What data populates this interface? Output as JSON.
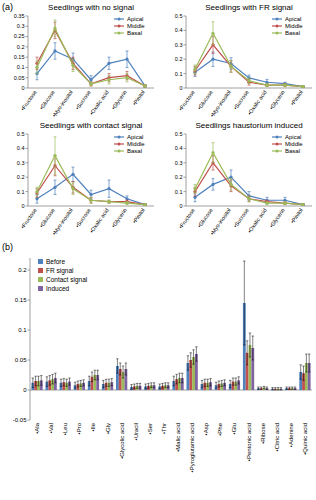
{
  "chart_data": [
    {
      "type": "line",
      "title": "Seedlings with no signal",
      "annotations": [
        "(a)"
      ],
      "categories": [
        "•Fructose",
        "•Glucose",
        "•Myo-inositol",
        "•Sucrose",
        "•Oxalic acid",
        "•Glycerin",
        "•Pinitol"
      ],
      "series": [
        {
          "name": "Apical",
          "color": "#4f81bd",
          "values": [
            0.07,
            0.18,
            0.14,
            0.04,
            0.12,
            0.14,
            0.01
          ],
          "errors": [
            0.03,
            0.04,
            0.03,
            0.02,
            0.03,
            0.04,
            0.005
          ]
        },
        {
          "name": "Middle",
          "color": "#c0504d",
          "values": [
            0.12,
            0.28,
            0.12,
            0.02,
            0.05,
            0.06,
            0.01
          ],
          "errors": [
            0.03,
            0.04,
            0.03,
            0.01,
            0.02,
            0.02,
            0.005
          ]
        },
        {
          "name": "Basal",
          "color": "#9bbb59",
          "values": [
            0.1,
            0.29,
            0.11,
            0.02,
            0.04,
            0.05,
            0.01
          ],
          "errors": [
            0.03,
            0.04,
            0.03,
            0.01,
            0.02,
            0.02,
            0.005
          ]
        }
      ],
      "ylim": [
        0,
        0.35
      ],
      "yticks": [
        0,
        0.05,
        0.1,
        0.15,
        0.2,
        0.25,
        0.3,
        0.35
      ],
      "legend": "top-right",
      "marker": "circle",
      "grid": false
    },
    {
      "type": "line",
      "title": "Seedlings with FR signal",
      "categories": [
        "•Fructose",
        "•Glucose",
        "•Myo-inositol",
        "•Sucrose",
        "•Oxalic acid",
        "•Glycerin",
        "•Pinitol"
      ],
      "series": [
        {
          "name": "Apical",
          "color": "#4f81bd",
          "values": [
            0.11,
            0.2,
            0.17,
            0.07,
            0.04,
            0.03,
            0.01
          ],
          "errors": [
            0.03,
            0.05,
            0.04,
            0.02,
            0.02,
            0.01,
            0.005
          ]
        },
        {
          "name": "Middle",
          "color": "#c0504d",
          "values": [
            0.12,
            0.3,
            0.15,
            0.04,
            0.02,
            0.02,
            0.01
          ],
          "errors": [
            0.03,
            0.06,
            0.04,
            0.02,
            0.01,
            0.01,
            0.005
          ]
        },
        {
          "name": "Basal",
          "color": "#9bbb59",
          "values": [
            0.13,
            0.38,
            0.15,
            0.05,
            0.02,
            0.02,
            0.01
          ],
          "errors": [
            0.03,
            0.08,
            0.04,
            0.02,
            0.01,
            0.01,
            0.005
          ]
        }
      ],
      "ylim": [
        0,
        0.5
      ],
      "yticks": [
        0,
        0.1,
        0.2,
        0.3,
        0.4,
        0.5
      ],
      "legend": "top-right",
      "marker": "circle",
      "grid": false
    },
    {
      "type": "line",
      "title": "Seedlings with contact signal",
      "categories": [
        "•Fructose",
        "•Glucose",
        "•Myo-inositol",
        "•Sucrose",
        "•Oxalic acid",
        "•Glycerin",
        "•Pinitol"
      ],
      "series": [
        {
          "name": "Apical",
          "color": "#4f81bd",
          "values": [
            0.05,
            0.13,
            0.22,
            0.08,
            0.12,
            0.05,
            0.01
          ],
          "errors": [
            0.03,
            0.05,
            0.05,
            0.03,
            0.06,
            0.02,
            0.005
          ]
        },
        {
          "name": "Middle",
          "color": "#c0504d",
          "values": [
            0.09,
            0.28,
            0.13,
            0.04,
            0.03,
            0.03,
            0.01
          ],
          "errors": [
            0.03,
            0.07,
            0.04,
            0.02,
            0.01,
            0.01,
            0.005
          ]
        },
        {
          "name": "Basal",
          "color": "#9bbb59",
          "values": [
            0.1,
            0.35,
            0.12,
            0.04,
            0.03,
            0.02,
            0.01
          ],
          "errors": [
            0.03,
            0.13,
            0.04,
            0.02,
            0.01,
            0.01,
            0.005
          ]
        }
      ],
      "ylim": [
        0,
        0.5
      ],
      "yticks": [
        0,
        0.1,
        0.2,
        0.3,
        0.4,
        0.5
      ],
      "legend": "top-right",
      "marker": "circle",
      "grid": false
    },
    {
      "type": "line",
      "title": "Seedlings haustorium induced",
      "categories": [
        "•Fructose",
        "•Glucose",
        "•Myo-inositol",
        "•Sucrose",
        "•Oxalic acid",
        "•Glycerin",
        "•Pinitol"
      ],
      "series": [
        {
          "name": "Apical",
          "color": "#4f81bd",
          "values": [
            0.06,
            0.15,
            0.2,
            0.07,
            0.04,
            0.04,
            0.01
          ],
          "errors": [
            0.03,
            0.04,
            0.05,
            0.03,
            0.02,
            0.02,
            0.005
          ]
        },
        {
          "name": "Middle",
          "color": "#c0504d",
          "values": [
            0.1,
            0.3,
            0.14,
            0.05,
            0.03,
            0.02,
            0.01
          ],
          "errors": [
            0.03,
            0.05,
            0.04,
            0.02,
            0.01,
            0.01,
            0.005
          ]
        },
        {
          "name": "Basal",
          "color": "#9bbb59",
          "values": [
            0.12,
            0.37,
            0.15,
            0.05,
            0.02,
            0.02,
            0.01
          ],
          "errors": [
            0.03,
            0.07,
            0.04,
            0.02,
            0.01,
            0.01,
            0.005
          ]
        }
      ],
      "ylim": [
        0,
        0.5
      ],
      "yticks": [
        0,
        0.1,
        0.2,
        0.3,
        0.4,
        0.5
      ],
      "legend": "top-right",
      "marker": "circle",
      "grid": false
    },
    {
      "type": "bar",
      "annotations": [
        "(b)"
      ],
      "categories": [
        "•Ala",
        "•Val",
        "•Leu",
        "•Pro",
        "•Ile",
        "•Gly",
        "•Glycolic acid",
        "•Uracil",
        "•Ser",
        "•Thr",
        "•Malic acid",
        "•Pyroglutamic acid",
        "•Asp",
        "•Phe",
        "•Glu",
        "•Pentonic acid",
        "•Ribose",
        "•Citric acid",
        "•Adenine",
        "•Quinic acid"
      ],
      "series": [
        {
          "name": "Before",
          "color": "#4f81bd",
          "values": [
            0.012,
            0.014,
            0.012,
            0.008,
            0.015,
            0.01,
            0.04,
            0.005,
            0.006,
            0.006,
            0.015,
            0.045,
            0.01,
            0.008,
            0.01,
            0.145,
            0.003,
            0.002,
            0.003,
            0.03
          ],
          "errors": [
            0.008,
            0.008,
            0.006,
            0.005,
            0.008,
            0.006,
            0.012,
            0.004,
            0.004,
            0.004,
            0.008,
            0.012,
            0.006,
            0.005,
            0.006,
            0.07,
            0.002,
            0.002,
            0.002,
            0.012
          ]
        },
        {
          "name": "FR signal",
          "color": "#c0504d",
          "values": [
            0.015,
            0.016,
            0.013,
            0.01,
            0.022,
            0.012,
            0.035,
            0.006,
            0.007,
            0.007,
            0.018,
            0.05,
            0.012,
            0.01,
            0.014,
            0.062,
            0.003,
            0.002,
            0.003,
            0.028
          ],
          "errors": [
            0.008,
            0.008,
            0.006,
            0.005,
            0.008,
            0.006,
            0.01,
            0.004,
            0.004,
            0.004,
            0.008,
            0.012,
            0.006,
            0.005,
            0.006,
            0.02,
            0.002,
            0.002,
            0.002,
            0.012
          ]
        },
        {
          "name": "Contact signal",
          "color": "#9bbb59",
          "values": [
            0.015,
            0.018,
            0.012,
            0.011,
            0.025,
            0.012,
            0.03,
            0.007,
            0.008,
            0.008,
            0.02,
            0.055,
            0.012,
            0.011,
            0.014,
            0.075,
            0.004,
            0.002,
            0.003,
            0.045
          ],
          "errors": [
            0.008,
            0.008,
            0.006,
            0.005,
            0.008,
            0.006,
            0.01,
            0.004,
            0.004,
            0.004,
            0.008,
            0.012,
            0.006,
            0.005,
            0.006,
            0.02,
            0.002,
            0.002,
            0.002,
            0.015
          ]
        },
        {
          "name": "Induced",
          "color": "#8064a2",
          "values": [
            0.016,
            0.02,
            0.014,
            0.012,
            0.025,
            0.013,
            0.035,
            0.007,
            0.008,
            0.008,
            0.02,
            0.06,
            0.013,
            0.012,
            0.016,
            0.07,
            0.003,
            0.002,
            0.003,
            0.045
          ],
          "errors": [
            0.008,
            0.008,
            0.006,
            0.005,
            0.008,
            0.006,
            0.01,
            0.004,
            0.004,
            0.004,
            0.008,
            0.012,
            0.006,
            0.005,
            0.006,
            0.02,
            0.002,
            0.002,
            0.002,
            0.015
          ]
        }
      ],
      "ylim": [
        -0.05,
        0.22
      ],
      "yticks": [
        -0.05,
        0,
        0.05,
        0.1,
        0.15,
        0.2
      ],
      "legend": "top-left",
      "grid": false
    }
  ]
}
